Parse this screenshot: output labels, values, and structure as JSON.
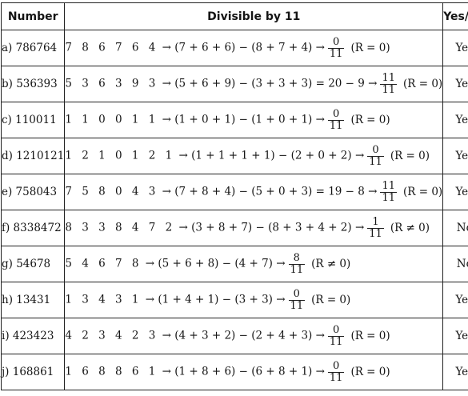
{
  "headers": {
    "number": "Number",
    "divisible": "Divisible by 11",
    "yesno": "Yes/No"
  },
  "rows": [
    {
      "label": "a) 786764",
      "digits": "7 8 6 7 6 4",
      "expr": "→ (7 + 6 + 6) − (8 + 7 + 4) →",
      "num": "0",
      "den": "11",
      "rem": "(R = 0)",
      "answer": "Yes"
    },
    {
      "label": "b) 536393",
      "digits": "5 3 6 3 9 3",
      "expr": "→ (5 + 6 + 9) − (3 + 3 + 3) = 20 − 9 →",
      "num": "11",
      "den": "11",
      "rem": "(R = 0)",
      "answer": "Yes"
    },
    {
      "label": "c) 110011",
      "digits": "1 1 0 0 1 1",
      "expr": "→ (1 + 0 + 1) − (1 + 0 + 1) →",
      "num": "0",
      "den": "11",
      "rem": "(R = 0)",
      "answer": "Yes"
    },
    {
      "label": "d) 1210121",
      "digits": "1 2 1 0 1 2 1",
      "expr": "→ (1 + 1 + 1 + 1) − (2 + 0 + 2) →",
      "num": "0",
      "den": "11",
      "rem": "(R = 0)",
      "answer": "Yes"
    },
    {
      "label": "e) 758043",
      "digits": "7 5 8 0 4 3",
      "expr": "→ (7 + 8 + 4) − (5 + 0 + 3) = 19 − 8 →",
      "num": "11",
      "den": "11",
      "rem": "(R = 0)",
      "answer": "Yes"
    },
    {
      "label": "f) 8338472",
      "digits": "8 3 3 8 4 7 2",
      "expr": "→ (3 + 8 + 7) − (8 + 3 + 4 + 2) →",
      "num": "1",
      "den": "11",
      "rem": "(R ≠ 0)",
      "answer": "No"
    },
    {
      "label": "g) 54678",
      "digits": "5 4 6 7 8",
      "expr": "→ (5 + 6 + 8) − (4 + 7) →",
      "num": "8",
      "den": "11",
      "rem": "(R ≠ 0)",
      "answer": "No"
    },
    {
      "label": "h) 13431",
      "digits": "1 3 4 3 1",
      "expr": "→ (1 + 4 + 1) − (3 + 3) →",
      "num": "0",
      "den": "11",
      "rem": "(R = 0)",
      "answer": "Yes"
    },
    {
      "label": "i) 423423",
      "digits": "4 2 3 4 2 3",
      "expr": "→ (4 + 3 + 2) − (2 + 4 + 3) →",
      "num": "0",
      "den": "11",
      "rem": "(R = 0)",
      "answer": "Yes"
    },
    {
      "label": "j) 168861",
      "digits": "1 6 8 8 6 1",
      "expr": "→ (1 + 8 + 6) − (6 + 8 + 1) →",
      "num": "0",
      "den": "11",
      "rem": "(R = 0)",
      "answer": "Yes"
    }
  ]
}
